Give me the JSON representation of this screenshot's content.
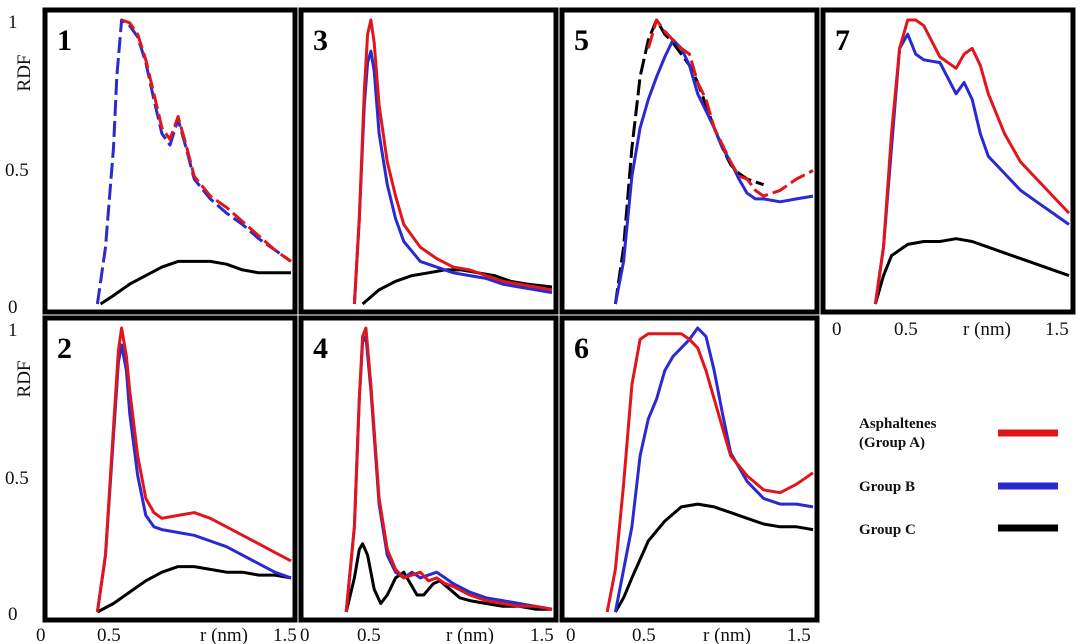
{
  "figure": {
    "y_axis_label": "RDF",
    "x_axis_label": "r (nm)",
    "x_ticks": [
      "0",
      "0.5",
      "1.5"
    ],
    "y_ticks": [
      "0",
      "0.5",
      "1"
    ]
  },
  "legend": {
    "entries": [
      {
        "label_lines": [
          "Asphaltenes",
          "(Group  A)"
        ],
        "color": "#e0161c"
      },
      {
        "label_lines": [
          "Group  B"
        ],
        "color": "#2a2ad0"
      },
      {
        "label_lines": [
          "Group  C"
        ],
        "color": "#000000"
      }
    ]
  },
  "colors": {
    "A": "#e0161c",
    "B": "#2a2ad0",
    "C": "#000000",
    "frame": "#000000"
  },
  "chart_data": [
    {
      "type": "line",
      "panel": "1",
      "xlim": [
        0,
        1.5
      ],
      "ylim": [
        0,
        1
      ],
      "series": [
        {
          "key": "A",
          "style": "dashed",
          "x": [
            0.45,
            0.5,
            0.55,
            0.6,
            0.65,
            0.7,
            0.75,
            0.8,
            0.85,
            0.9,
            1.0,
            1.1,
            1.2,
            1.3,
            1.4,
            1.5
          ],
          "y": [
            1.0,
            0.99,
            0.95,
            0.86,
            0.74,
            0.62,
            0.58,
            0.66,
            0.56,
            0.45,
            0.38,
            0.34,
            0.29,
            0.24,
            0.19,
            0.15
          ]
        },
        {
          "key": "B",
          "style": "dashed",
          "x": [
            0.3,
            0.35,
            0.4,
            0.42,
            0.45,
            0.5,
            0.55,
            0.6,
            0.65,
            0.7,
            0.75,
            0.8,
            0.85,
            0.9,
            1.0,
            1.1,
            1.2,
            1.3,
            1.4,
            1.5
          ],
          "y": [
            0.0,
            0.2,
            0.55,
            0.8,
            1.0,
            0.98,
            0.94,
            0.85,
            0.72,
            0.6,
            0.56,
            0.65,
            0.55,
            0.44,
            0.37,
            0.32,
            0.28,
            0.23,
            0.19,
            0.15
          ]
        },
        {
          "key": "C",
          "style": "solid",
          "x": [
            0.32,
            0.4,
            0.5,
            0.6,
            0.7,
            0.8,
            0.9,
            1.0,
            1.1,
            1.2,
            1.3,
            1.4,
            1.5
          ],
          "y": [
            0.0,
            0.03,
            0.07,
            0.1,
            0.13,
            0.15,
            0.15,
            0.15,
            0.14,
            0.12,
            0.11,
            0.11,
            0.11
          ]
        }
      ]
    },
    {
      "type": "line",
      "panel": "3",
      "xlim": [
        0,
        1.5
      ],
      "ylim": [
        0,
        1
      ],
      "series": [
        {
          "key": "A",
          "style": "solid",
          "x": [
            0.3,
            0.33,
            0.36,
            0.38,
            0.4,
            0.42,
            0.45,
            0.5,
            0.55,
            0.6,
            0.7,
            0.8,
            0.9,
            1.0,
            1.1,
            1.2,
            1.3,
            1.4,
            1.5
          ],
          "y": [
            0.0,
            0.3,
            0.75,
            0.95,
            1.0,
            0.92,
            0.7,
            0.5,
            0.38,
            0.28,
            0.2,
            0.16,
            0.13,
            0.12,
            0.1,
            0.08,
            0.07,
            0.06,
            0.05
          ]
        },
        {
          "key": "B",
          "style": "solid",
          "x": [
            0.3,
            0.33,
            0.36,
            0.38,
            0.4,
            0.42,
            0.45,
            0.5,
            0.55,
            0.6,
            0.7,
            0.8,
            0.9,
            1.0,
            1.1,
            1.2,
            1.3,
            1.4,
            1.5
          ],
          "y": [
            0.0,
            0.3,
            0.7,
            0.85,
            0.89,
            0.82,
            0.6,
            0.42,
            0.3,
            0.22,
            0.15,
            0.13,
            0.11,
            0.1,
            0.09,
            0.07,
            0.06,
            0.05,
            0.04
          ]
        },
        {
          "key": "C",
          "style": "solid",
          "x": [
            0.35,
            0.45,
            0.55,
            0.65,
            0.75,
            0.85,
            0.95,
            1.05,
            1.15,
            1.25,
            1.35,
            1.5
          ],
          "y": [
            0.0,
            0.05,
            0.08,
            0.1,
            0.11,
            0.12,
            0.12,
            0.11,
            0.1,
            0.08,
            0.07,
            0.06
          ]
        }
      ]
    },
    {
      "type": "line",
      "panel": "5",
      "xlim": [
        0,
        1.5
      ],
      "ylim": [
        0,
        1
      ],
      "series": [
        {
          "key": "A",
          "style": "dashed",
          "x": [
            0.5,
            0.55,
            0.6,
            0.65,
            0.7,
            0.75,
            0.8,
            0.85,
            0.9,
            1.0,
            1.05,
            1.1,
            1.15,
            1.2,
            1.3,
            1.4,
            1.5
          ],
          "y": [
            0.9,
            1.0,
            0.96,
            0.93,
            0.9,
            0.88,
            0.78,
            0.72,
            0.62,
            0.5,
            0.45,
            0.44,
            0.4,
            0.38,
            0.4,
            0.44,
            0.47
          ]
        },
        {
          "key": "B",
          "style": "solid",
          "x": [
            0.3,
            0.35,
            0.4,
            0.45,
            0.5,
            0.55,
            0.6,
            0.65,
            0.7,
            0.75,
            0.8,
            0.85,
            0.9,
            0.95,
            1.0,
            1.05,
            1.1,
            1.15,
            1.2,
            1.3,
            1.4,
            1.5
          ],
          "y": [
            0.0,
            0.15,
            0.45,
            0.62,
            0.72,
            0.8,
            0.87,
            0.93,
            0.9,
            0.84,
            0.74,
            0.68,
            0.62,
            0.55,
            0.5,
            0.44,
            0.39,
            0.37,
            0.37,
            0.36,
            0.37,
            0.38
          ]
        },
        {
          "key": "C",
          "style": "dashed",
          "x": [
            0.3,
            0.35,
            0.4,
            0.45,
            0.5,
            0.55,
            0.6,
            0.65,
            0.7,
            0.75,
            0.8,
            0.85,
            0.9,
            0.95,
            1.0,
            1.05,
            1.1,
            1.15,
            1.2
          ],
          "y": [
            0.0,
            0.2,
            0.55,
            0.8,
            0.93,
            1.0,
            0.95,
            0.92,
            0.88,
            0.84,
            0.78,
            0.7,
            0.62,
            0.55,
            0.49,
            0.46,
            0.44,
            0.43,
            0.42
          ]
        }
      ]
    },
    {
      "type": "line",
      "panel": "7",
      "xlim": [
        0,
        1.5
      ],
      "ylim": [
        0,
        1
      ],
      "series": [
        {
          "key": "A",
          "style": "solid",
          "x": [
            0.3,
            0.35,
            0.4,
            0.45,
            0.5,
            0.55,
            0.6,
            0.7,
            0.8,
            0.85,
            0.9,
            0.95,
            1.0,
            1.1,
            1.2,
            1.3,
            1.4,
            1.5
          ],
          "y": [
            0.0,
            0.2,
            0.6,
            0.9,
            1.0,
            1.0,
            0.98,
            0.87,
            0.83,
            0.88,
            0.9,
            0.84,
            0.74,
            0.6,
            0.5,
            0.44,
            0.38,
            0.32
          ]
        },
        {
          "key": "B",
          "style": "solid",
          "x": [
            0.3,
            0.35,
            0.4,
            0.45,
            0.5,
            0.55,
            0.6,
            0.7,
            0.8,
            0.85,
            0.9,
            0.95,
            1.0,
            1.1,
            1.2,
            1.3,
            1.4,
            1.5
          ],
          "y": [
            0.0,
            0.2,
            0.55,
            0.9,
            0.95,
            0.88,
            0.86,
            0.85,
            0.74,
            0.78,
            0.72,
            0.6,
            0.52,
            0.46,
            0.4,
            0.36,
            0.32,
            0.28
          ]
        },
        {
          "key": "C",
          "style": "solid",
          "x": [
            0.3,
            0.35,
            0.4,
            0.5,
            0.6,
            0.7,
            0.8,
            0.9,
            1.0,
            1.1,
            1.2,
            1.3,
            1.4,
            1.5
          ],
          "y": [
            0.0,
            0.1,
            0.17,
            0.21,
            0.22,
            0.22,
            0.23,
            0.22,
            0.2,
            0.18,
            0.16,
            0.14,
            0.12,
            0.1
          ]
        }
      ]
    },
    {
      "type": "line",
      "panel": "2",
      "xlim": [
        0,
        1.5
      ],
      "ylim": [
        0,
        1
      ],
      "series": [
        {
          "key": "A",
          "style": "solid",
          "x": [
            0.3,
            0.35,
            0.4,
            0.43,
            0.45,
            0.48,
            0.5,
            0.55,
            0.6,
            0.65,
            0.7,
            0.8,
            0.9,
            1.0,
            1.1,
            1.2,
            1.3,
            1.4,
            1.5
          ],
          "y": [
            0.0,
            0.2,
            0.65,
            0.92,
            1.0,
            0.9,
            0.78,
            0.55,
            0.4,
            0.35,
            0.33,
            0.34,
            0.35,
            0.33,
            0.3,
            0.27,
            0.24,
            0.21,
            0.18
          ]
        },
        {
          "key": "B",
          "style": "solid",
          "x": [
            0.3,
            0.35,
            0.4,
            0.43,
            0.45,
            0.48,
            0.5,
            0.55,
            0.6,
            0.65,
            0.7,
            0.8,
            0.9,
            1.0,
            1.1,
            1.2,
            1.3,
            1.4,
            1.5
          ],
          "y": [
            0.0,
            0.2,
            0.62,
            0.88,
            0.94,
            0.85,
            0.7,
            0.48,
            0.34,
            0.3,
            0.29,
            0.28,
            0.27,
            0.25,
            0.23,
            0.2,
            0.17,
            0.14,
            0.12
          ]
        },
        {
          "key": "C",
          "style": "solid",
          "x": [
            0.3,
            0.4,
            0.5,
            0.6,
            0.7,
            0.8,
            0.9,
            1.0,
            1.1,
            1.2,
            1.3,
            1.4,
            1.5
          ],
          "y": [
            0.0,
            0.03,
            0.07,
            0.11,
            0.14,
            0.16,
            0.16,
            0.15,
            0.14,
            0.14,
            0.13,
            0.13,
            0.12
          ]
        }
      ]
    },
    {
      "type": "line",
      "panel": "4",
      "xlim": [
        0,
        1.5
      ],
      "ylim": [
        0,
        1
      ],
      "series": [
        {
          "key": "A",
          "style": "solid",
          "x": [
            0.25,
            0.3,
            0.33,
            0.35,
            0.37,
            0.4,
            0.45,
            0.5,
            0.55,
            0.6,
            0.65,
            0.7,
            0.75,
            0.8,
            0.85,
            0.9,
            1.0,
            1.1,
            1.2,
            1.3,
            1.4,
            1.5
          ],
          "y": [
            0.0,
            0.3,
            0.75,
            0.97,
            1.0,
            0.8,
            0.4,
            0.22,
            0.15,
            0.12,
            0.13,
            0.14,
            0.11,
            0.12,
            0.1,
            0.09,
            0.06,
            0.04,
            0.03,
            0.02,
            0.02,
            0.01
          ]
        },
        {
          "key": "B",
          "style": "solid",
          "x": [
            0.25,
            0.3,
            0.33,
            0.35,
            0.37,
            0.4,
            0.45,
            0.5,
            0.55,
            0.6,
            0.65,
            0.7,
            0.75,
            0.8,
            0.85,
            0.9,
            1.0,
            1.1,
            1.2,
            1.3,
            1.4,
            1.5
          ],
          "y": [
            0.0,
            0.3,
            0.75,
            0.95,
            0.97,
            0.78,
            0.38,
            0.2,
            0.14,
            0.12,
            0.14,
            0.12,
            0.13,
            0.14,
            0.12,
            0.1,
            0.07,
            0.05,
            0.04,
            0.03,
            0.02,
            0.01
          ]
        },
        {
          "key": "C",
          "style": "solid",
          "x": [
            0.25,
            0.3,
            0.33,
            0.35,
            0.38,
            0.42,
            0.46,
            0.5,
            0.55,
            0.6,
            0.64,
            0.68,
            0.72,
            0.78,
            0.82,
            0.88,
            0.94,
            1.0,
            1.1,
            1.2,
            1.3,
            1.4,
            1.5
          ],
          "y": [
            0.0,
            0.12,
            0.22,
            0.24,
            0.2,
            0.08,
            0.03,
            0.06,
            0.12,
            0.14,
            0.1,
            0.06,
            0.06,
            0.1,
            0.11,
            0.08,
            0.05,
            0.04,
            0.03,
            0.02,
            0.02,
            0.01,
            0.01
          ]
        }
      ]
    },
    {
      "type": "line",
      "panel": "6",
      "xlim": [
        0,
        1.5
      ],
      "ylim": [
        0,
        1
      ],
      "series": [
        {
          "key": "A",
          "style": "solid",
          "x": [
            0.25,
            0.3,
            0.35,
            0.4,
            0.45,
            0.5,
            0.6,
            0.7,
            0.75,
            0.8,
            0.85,
            0.9,
            0.95,
            1.0,
            1.1,
            1.2,
            1.3,
            1.4,
            1.5
          ],
          "y": [
            0.0,
            0.15,
            0.45,
            0.8,
            0.96,
            0.98,
            0.98,
            0.98,
            0.96,
            0.93,
            0.85,
            0.75,
            0.65,
            0.55,
            0.48,
            0.43,
            0.42,
            0.45,
            0.49
          ]
        },
        {
          "key": "B",
          "style": "solid",
          "x": [
            0.3,
            0.4,
            0.45,
            0.5,
            0.55,
            0.6,
            0.65,
            0.7,
            0.75,
            0.8,
            0.85,
            0.9,
            0.95,
            1.0,
            1.1,
            1.2,
            1.3,
            1.4,
            1.5
          ],
          "y": [
            0.0,
            0.3,
            0.55,
            0.68,
            0.75,
            0.85,
            0.9,
            0.93,
            0.96,
            1.0,
            0.97,
            0.85,
            0.7,
            0.56,
            0.46,
            0.4,
            0.38,
            0.38,
            0.37
          ]
        },
        {
          "key": "C",
          "style": "solid",
          "x": [
            0.3,
            0.35,
            0.4,
            0.5,
            0.6,
            0.7,
            0.8,
            0.9,
            1.0,
            1.1,
            1.2,
            1.3,
            1.4,
            1.5
          ],
          "y": [
            0.0,
            0.05,
            0.12,
            0.25,
            0.32,
            0.37,
            0.38,
            0.37,
            0.35,
            0.33,
            0.31,
            0.3,
            0.3,
            0.29
          ]
        }
      ]
    }
  ]
}
